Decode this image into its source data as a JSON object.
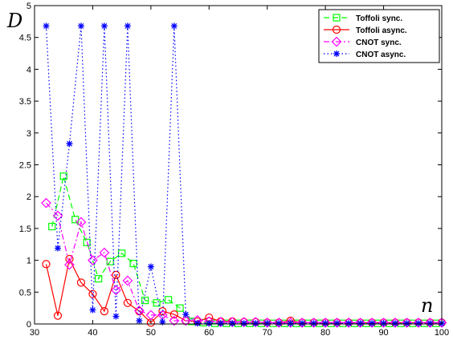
{
  "chart_data": {
    "type": "line",
    "xlabel": "n",
    "ylabel": "D",
    "xlim": [
      30,
      100
    ],
    "ylim": [
      0,
      5
    ],
    "x_ticks": [
      "30",
      "40",
      "50",
      "60",
      "70",
      "80",
      "90",
      "100"
    ],
    "y_ticks": [
      "0",
      "0.5",
      "1",
      "1.5",
      "2",
      "2.5",
      "3",
      "3.5",
      "4",
      "4.5",
      "5"
    ],
    "grid": false,
    "legend_position": "top-right",
    "series": [
      {
        "name": "Toffoli sync.",
        "color": "#00ff00",
        "line_style": "dashed",
        "marker": "square",
        "x": [
          33,
          35,
          37,
          39,
          41,
          43,
          45,
          47,
          49,
          51,
          53,
          55,
          57,
          59,
          61,
          63,
          65,
          67,
          69,
          71,
          73,
          75,
          77,
          79,
          81,
          83,
          85,
          87,
          89,
          91,
          93,
          95,
          97,
          99
        ],
        "y": [
          1.53,
          2.32,
          1.64,
          1.28,
          0.71,
          0.98,
          1.11,
          0.95,
          0.37,
          0.33,
          0.38,
          0.25,
          0.04,
          0.02,
          0.01,
          0.01,
          0.01,
          0.01,
          0.01,
          0.01,
          0.01,
          0.01,
          0.01,
          0.01,
          0.01,
          0.01,
          0.01,
          0.01,
          0.01,
          0.01,
          0.01,
          0.01,
          0.01,
          0.01
        ]
      },
      {
        "name": "Toffoli async.",
        "color": "#ff0000",
        "line_style": "solid",
        "marker": "circle",
        "x": [
          32,
          34,
          36,
          38,
          40,
          42,
          44,
          46,
          48,
          50,
          52,
          54,
          56,
          58,
          60,
          62,
          64,
          66,
          68,
          70,
          72,
          74,
          76,
          78,
          80,
          82,
          84,
          86,
          88,
          90,
          92,
          94,
          96,
          98,
          100
        ],
        "y": [
          0.94,
          0.13,
          1.02,
          0.65,
          0.47,
          0.2,
          0.77,
          0.33,
          0.2,
          0.02,
          0.2,
          0.15,
          0.05,
          0.04,
          0.1,
          0.04,
          0.04,
          0.03,
          0.03,
          0.02,
          0.02,
          0.05,
          0.02,
          0.02,
          0.02,
          0.02,
          0.02,
          0.02,
          0.02,
          0.02,
          0.02,
          0.02,
          0.02,
          0.02,
          0.02
        ]
      },
      {
        "name": "CNOT sync.",
        "color": "#ff00ff",
        "line_style": "dashdot",
        "marker": "diamond",
        "x": [
          32,
          34,
          36,
          38,
          40,
          42,
          44,
          46,
          48,
          50,
          52,
          54,
          56,
          58,
          60,
          62,
          64,
          66,
          68,
          70,
          72,
          74,
          76,
          78,
          80,
          82,
          84,
          86,
          88,
          90,
          92,
          94,
          96,
          98,
          100
        ],
        "y": [
          1.9,
          1.7,
          0.93,
          1.6,
          1.0,
          1.12,
          0.53,
          0.68,
          0.21,
          0.14,
          0.14,
          0.05,
          0.05,
          0.06,
          0.04,
          0.03,
          0.03,
          0.03,
          0.03,
          0.02,
          0.02,
          0.02,
          0.02,
          0.02,
          0.02,
          0.02,
          0.02,
          0.02,
          0.02,
          0.02,
          0.02,
          0.02,
          0.02,
          0.02,
          0.02
        ]
      },
      {
        "name": "CNOT async.",
        "color": "#0000ff",
        "line_style": "dotted",
        "marker": "star",
        "x": [
          32,
          34,
          36,
          38,
          40,
          42,
          44,
          46,
          48,
          50,
          52,
          54,
          56,
          58,
          60,
          62,
          64,
          66,
          68,
          70,
          72,
          74,
          76,
          78,
          80,
          82,
          84,
          86,
          88,
          90,
          92,
          94,
          96,
          98,
          100
        ],
        "y": [
          4.68,
          1.19,
          2.83,
          4.68,
          0.22,
          4.68,
          0.12,
          4.68,
          0.05,
          0.9,
          0.03,
          4.68,
          0.15,
          0.01,
          0.01,
          0.01,
          0.01,
          0.01,
          0.01,
          0.01,
          0.01,
          0.01,
          0.01,
          0.01,
          0.01,
          0.01,
          0.01,
          0.01,
          0.01,
          0.01,
          0.01,
          0.01,
          0.01,
          0.01,
          0.01
        ]
      }
    ]
  }
}
